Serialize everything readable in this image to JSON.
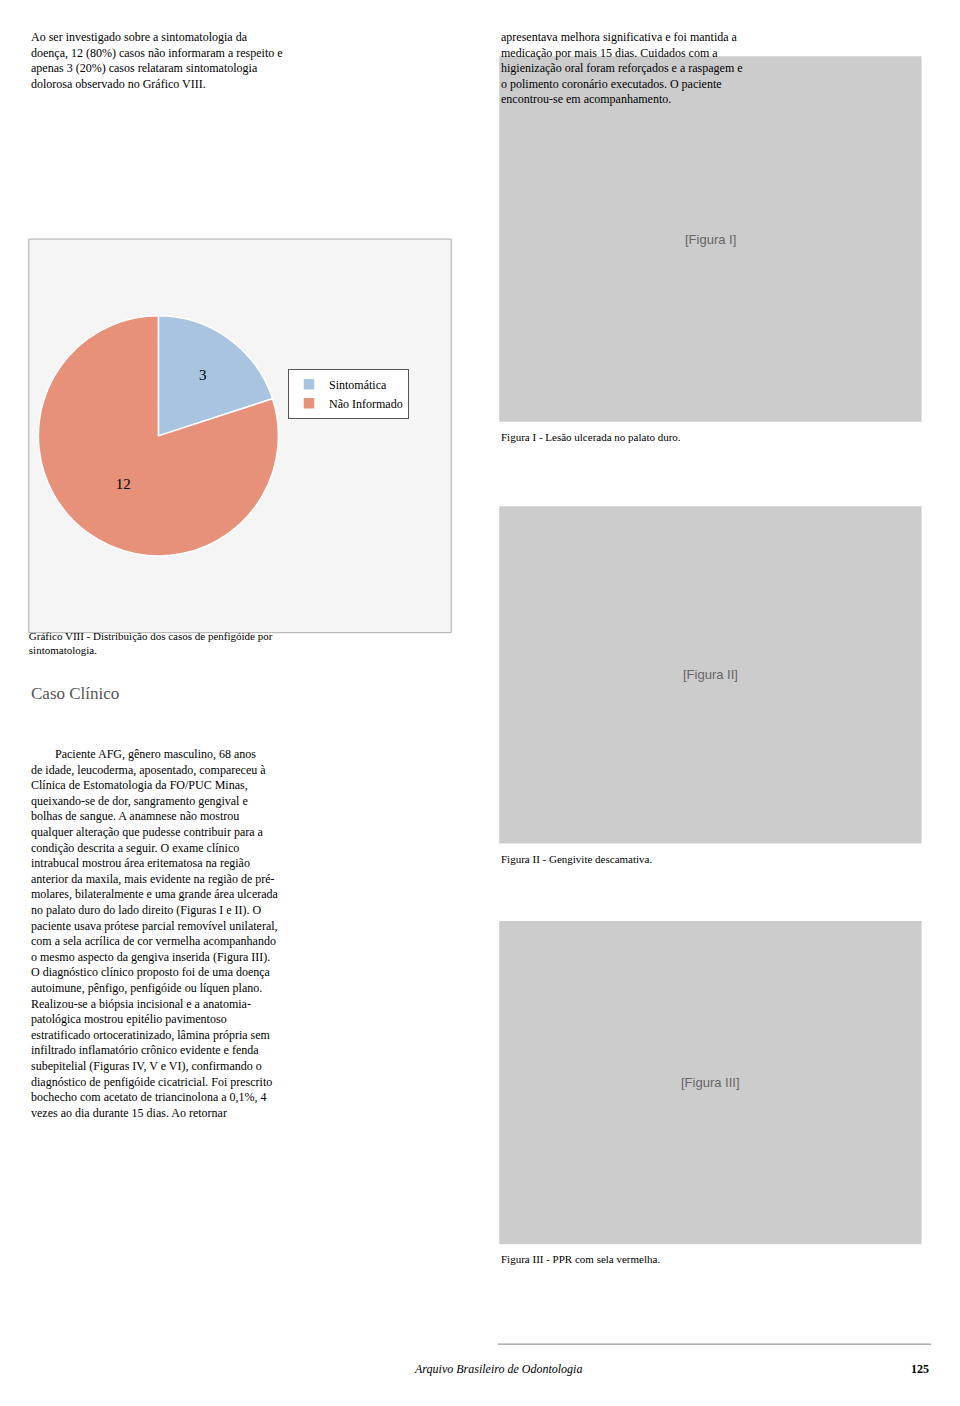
{
  "chart_data": {
    "type": "pie",
    "title": "Gráfico VIII - Distribuição dos casos de penfigóide por\nsintomatologia.",
    "categories": [
      "Sintomática",
      "Não Informado"
    ],
    "values": [
      3,
      12
    ],
    "colors": [
      "#a8c4e0",
      "#e8917a"
    ],
    "data_labels": true,
    "legend": "right",
    "annotations": [
      "Ao ser investigado sobre a sintomatologia da\ndoença, 12 (80%) casos não informaram a respeito e\napenas 3 (20%) casos relataram sintomatologia\ndolorosa observado no Gráfico VIII.",
      "apresentava melhora significativa e foi mantida a\nmedicação por mais 15 dias. Cuidados com a\nhigienização oral foram reforçados e a raspagem e\no polimento coronário executados. O paciente\nencontrou-se em acompanhamento.",
      "Caso Clínico",
      "        Paciente AFG, gênero masculino, 68 anos\nde idade, leucoderma, aposentado, compareceu à\nClínica de Estomatologia da FO/PUC Minas,\nqueixando-se de dor, sangramento gengival e\nbolhas de sangue. A anamnese não mostrou\nqualquer alteração que pudesse contribuir para a\ncondição descrita a seguir. O exame clínico\nintrabucal mostrou área eritematosa na região\nanterior da maxila, mais evidente na região de pré-\nmolares, bilateralmente e uma grande área ulcerada\nno palato duro do lado direito (Figuras I e II). O\npaciente usava prótese parcial removível unilateral,\ncom a sela acrílica de cor vermelha acompanhando\no mesmo aspecto da gengiva inserida (Figura III).\nO diagnóstico clínico proposto foi de uma doença\nautoimune, pênfigo, penfigóide ou líquen plano.\nRealizou-se a biópsia incisional e a anatomia-\npatológica mostrou epitélio pavimentoso\nestratificado ortoceratinizado, lâmina própria sem\ninfiltrado inflamatório crônico evidente e fenda\nsubepitelial (Figuras IV, V e VI), confirmando o\ndiagnóstico de penfigóide cicatricial. Foi prescrito\nbochecho com acetato de triancinolona a 0,1%, 4\nvezes ao dia durante 15 dias. Ao retornar",
      "[Figura I]",
      "Figura I - Lesão ulcerada no palato duro.",
      "[Figura II]",
      "Figura II - Gengivite descamativa.",
      "[Figura III]",
      "Figura III - PPR com sela vermelha.",
      "Arquivo Brasileiro de Odontologia",
      "125"
    ]
  }
}
